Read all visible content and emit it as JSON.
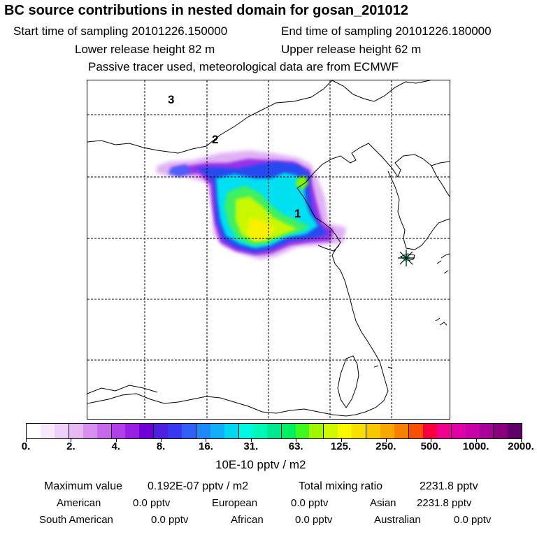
{
  "title": "BC  source contributions in nested domain for gosan_201012",
  "header": {
    "start_time": "Start time of sampling 20101226.150000",
    "end_time": "End time of sampling 20101226.180000",
    "lower_release": "Lower release height   82 m",
    "upper_release": "Upper release height   62 m",
    "tracer_note": "Passive tracer used, meteorological data are from ECMWF"
  },
  "map": {
    "region_labels": [
      "3",
      "2",
      "1"
    ],
    "receptor_marker": "star-marker",
    "palette": [
      "#ffffff",
      "#f8e8fc",
      "#f0d0f8",
      "#e8b8f4",
      "#d890f0",
      "#c868ec",
      "#b040e8",
      "#9820e4",
      "#7000d8",
      "#5020e0",
      "#3838f0",
      "#3060f8",
      "#2088f8",
      "#10b0f8",
      "#00d8f0",
      "#00f8e0",
      "#00f8b8",
      "#00e890",
      "#00f060",
      "#40f820",
      "#a0f800",
      "#d0f800",
      "#f8f800",
      "#f8e000",
      "#f8c800",
      "#f8a800",
      "#f88000",
      "#f85000",
      "#f80040",
      "#f00090",
      "#e000a8",
      "#c800a8",
      "#a80098",
      "#880080",
      "#600068"
    ]
  },
  "colorbar": {
    "tick_labels": [
      "0.",
      "2.",
      "4.",
      "8.",
      "16.",
      "31.",
      "63.",
      "125.",
      "250.",
      "500.",
      "1000.",
      "2000."
    ],
    "unit": "10E-10 pptv / m2"
  },
  "stats": {
    "max_label": "Maximum value",
    "max_value": "0.192E-07 pptv / m2",
    "total_label": "Total mixing ratio",
    "total_value": "2231.8 pptv"
  },
  "contributions": [
    {
      "name": "American",
      "value": "0.0 pptv"
    },
    {
      "name": "European",
      "value": "0.0 pptv"
    },
    {
      "name": "Asian",
      "value": "2231.8 pptv"
    },
    {
      "name": "South American",
      "value": "0.0 pptv"
    },
    {
      "name": "African",
      "value": "0.0 pptv"
    },
    {
      "name": "Australian",
      "value": "0.0 pptv"
    }
  ]
}
